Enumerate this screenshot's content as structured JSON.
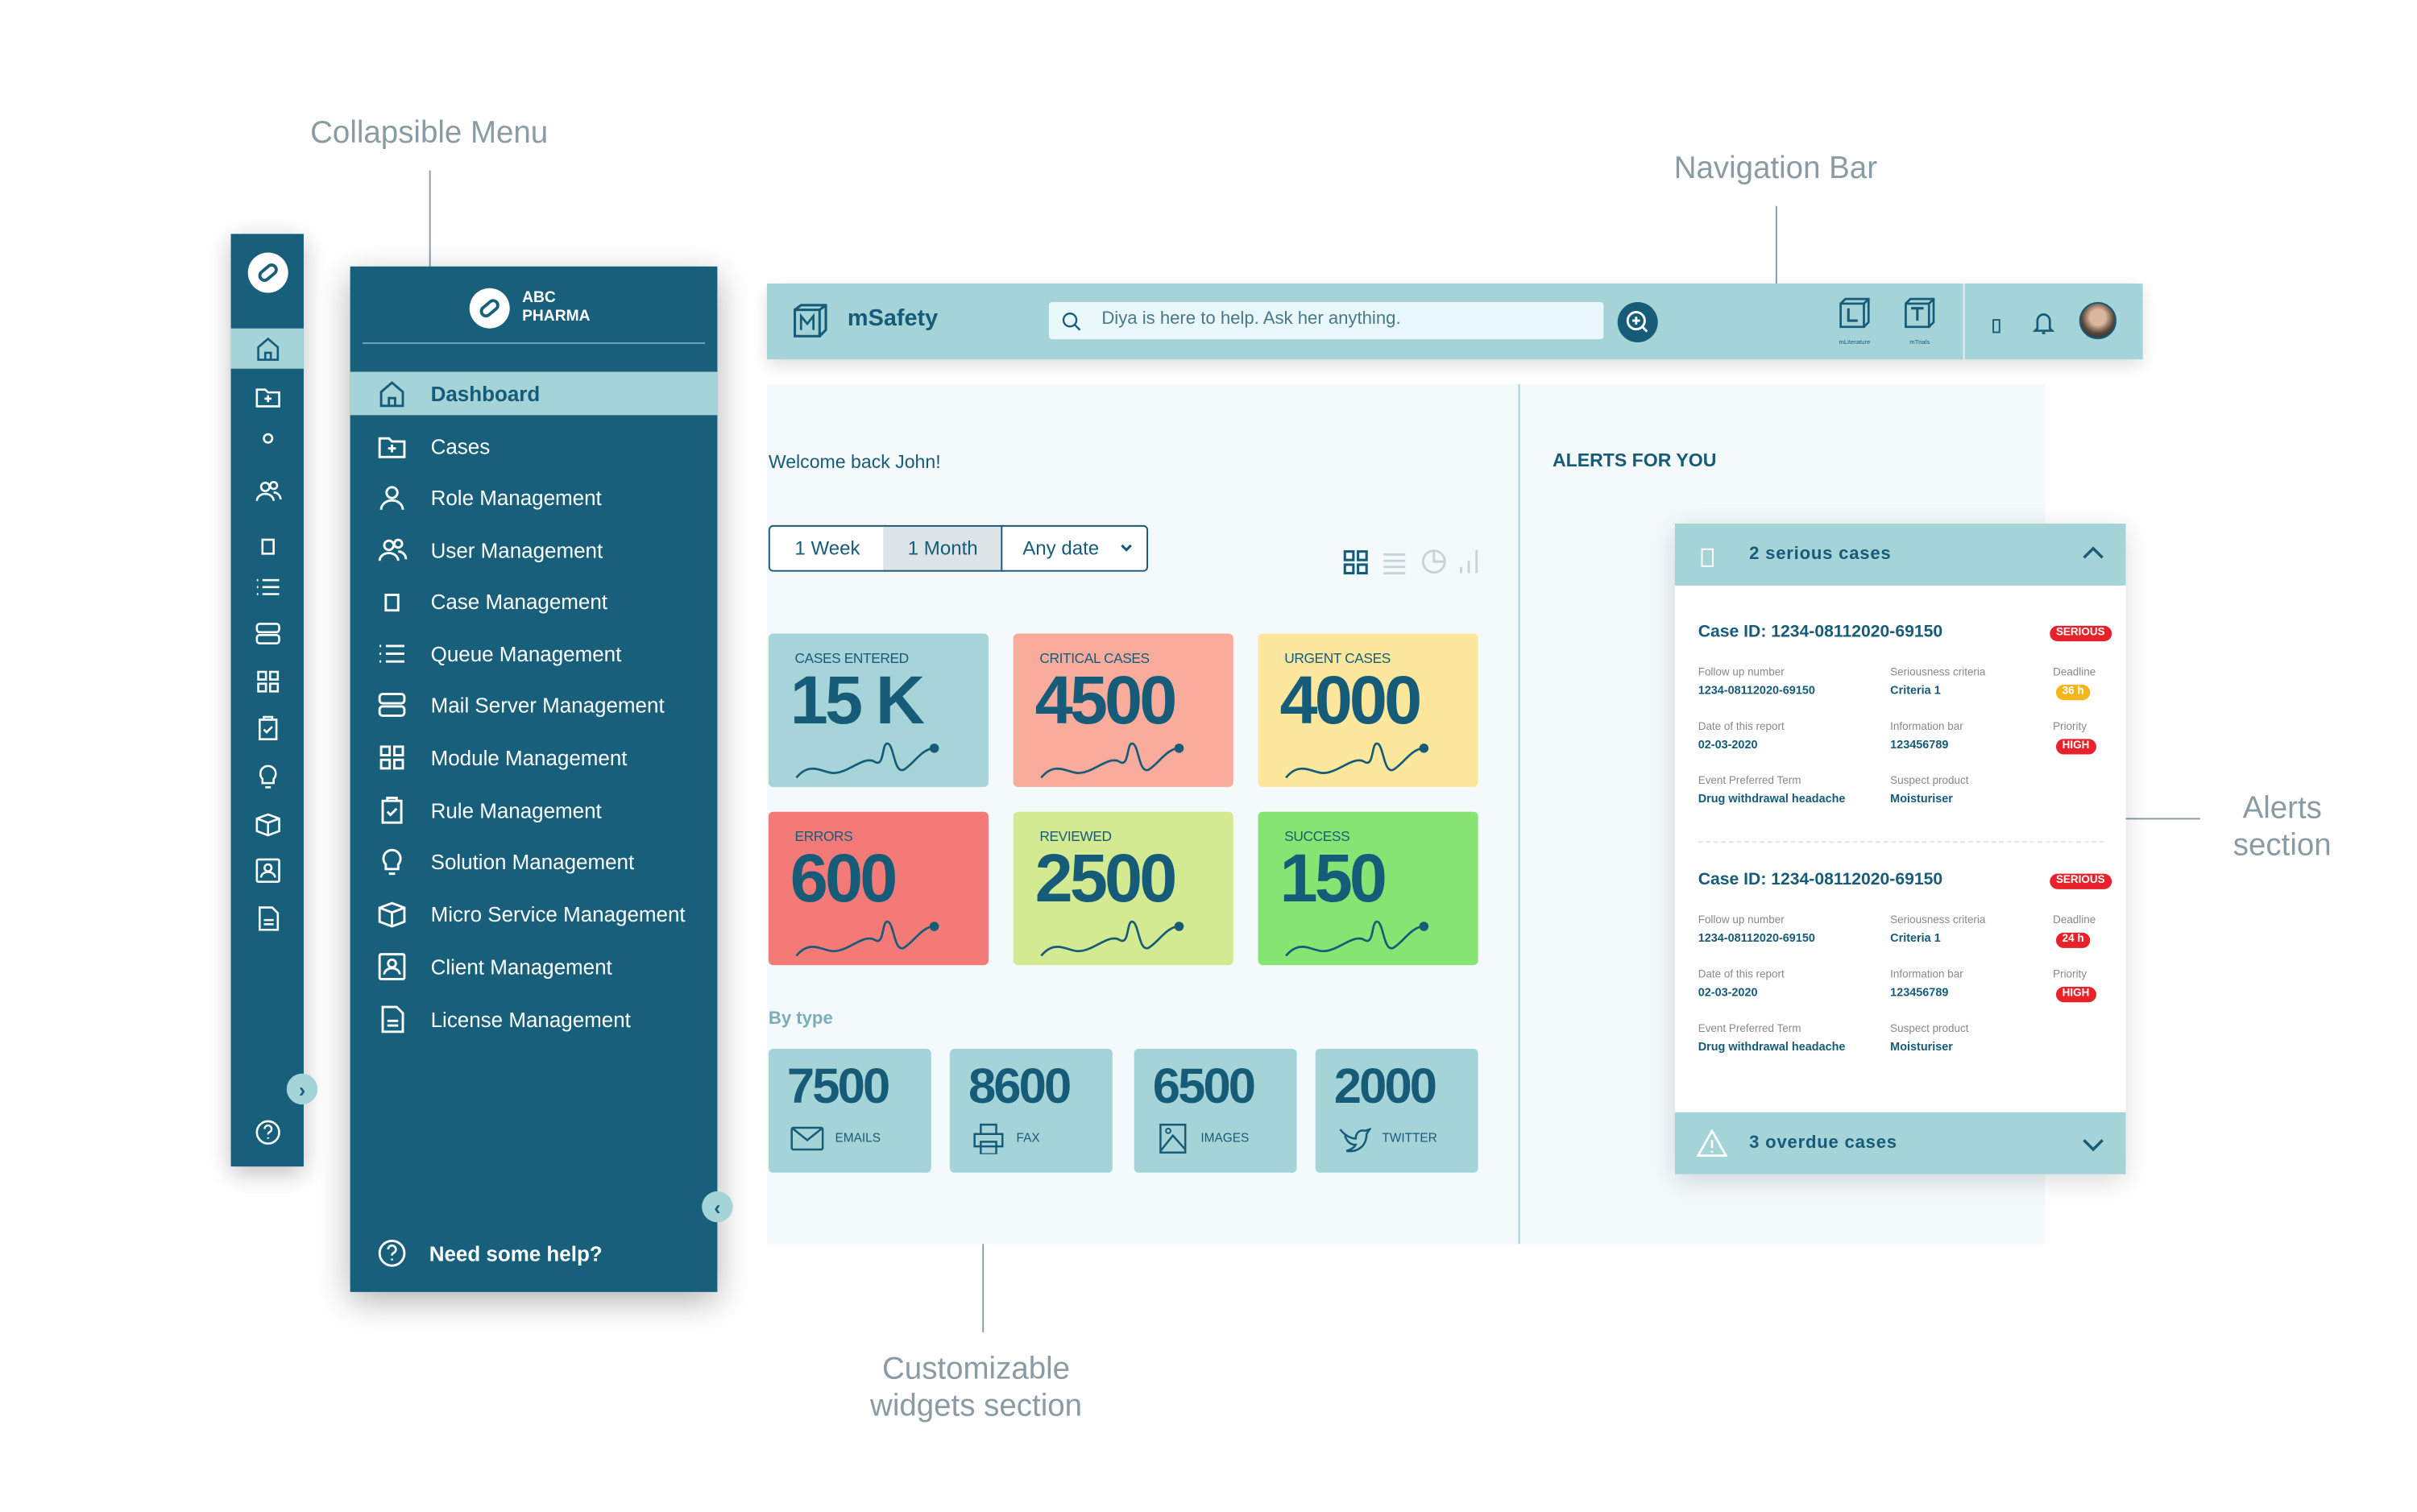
{
  "annotations": {
    "collapsible_menu": "Collapsible Menu",
    "navigation_bar": "Navigation Bar",
    "widgets_line1": "Customizable",
    "widgets_line2": "widgets section",
    "alerts_line1": "Alerts",
    "alerts_line2": "section"
  },
  "sidebar": {
    "brand_line1": "ABC",
    "brand_line2": "PHARMA",
    "items": [
      {
        "label": "Dashboard",
        "icon": "home-icon",
        "active": true
      },
      {
        "label": "Cases",
        "icon": "folder-plus-icon"
      },
      {
        "label": "Role Management",
        "icon": "user-icon"
      },
      {
        "label": "User Management",
        "icon": "users-icon"
      },
      {
        "label": "Case Management",
        "icon": "square-icon"
      },
      {
        "label": "Queue Management",
        "icon": "list-icon"
      },
      {
        "label": "Mail Server Management",
        "icon": "server-icon"
      },
      {
        "label": "Module Management",
        "icon": "grid-icon"
      },
      {
        "label": "Rule Management",
        "icon": "clipboard-check-icon"
      },
      {
        "label": "Solution Management",
        "icon": "lightbulb-icon"
      },
      {
        "label": "Micro Service Management",
        "icon": "cube-icon"
      },
      {
        "label": "Client Management",
        "icon": "id-card-icon"
      },
      {
        "label": "License Management",
        "icon": "document-icon"
      }
    ],
    "help_label": "Need some help?"
  },
  "navbar": {
    "app_name": "mSafety",
    "search_placeholder": "Diya is here to help. Ask her anything.",
    "apps": [
      {
        "letter": "L",
        "label": "mLiterature"
      },
      {
        "letter": "T",
        "label": "mTrials"
      }
    ]
  },
  "main": {
    "welcome": "Welcome back John!",
    "range_options": [
      "1 Week",
      "1 Month"
    ],
    "range_selected": "1 Month",
    "date_select": "Any date",
    "views": [
      "grid-view-icon",
      "list-view-icon",
      "pie-view-icon",
      "bar-view-icon"
    ],
    "cards": [
      {
        "title": "CASES ENTERED",
        "value": "15 K",
        "color": "#a6d4d8"
      },
      {
        "title": "CRITICAL CASES",
        "value": "4500",
        "color": "#f9ab9c"
      },
      {
        "title": "URGENT CASES",
        "value": "4000",
        "color": "#fde79d"
      },
      {
        "title": "ERRORS",
        "value": "600",
        "color": "#f47a78"
      },
      {
        "title": "REVIEWED",
        "value": "2500",
        "color": "#d3ea93"
      },
      {
        "title": "SUCCESS",
        "value": "150",
        "color": "#86e472"
      }
    ],
    "by_type_label": "By type",
    "types": [
      {
        "value": "7500",
        "label": "EMAILS",
        "icon": "mail-icon"
      },
      {
        "value": "8600",
        "label": "FAX",
        "icon": "printer-icon"
      },
      {
        "value": "6500",
        "label": "IMAGES",
        "icon": "image-icon"
      },
      {
        "value": "2000",
        "label": "TWITTER",
        "icon": "twitter-icon"
      }
    ]
  },
  "alerts": {
    "title": "ALERTS FOR YOU",
    "serious_header": "2 serious cases",
    "overdue_header": "3 overdue cases",
    "field_labels": {
      "followup": "Follow up number",
      "criteria": "Seriousness criteria",
      "deadline": "Deadline",
      "date": "Date of this report",
      "info": "Information bar",
      "priority": "Priority",
      "event": "Event Preferred Term",
      "product": "Suspect product"
    },
    "cases": [
      {
        "case_id": "Case ID: 1234-08112020-69150",
        "badge": "SERIOUS",
        "followup": "1234-08112020-69150",
        "criteria": "Criteria 1",
        "deadline": "36 h",
        "deadline_color": "#f7b51d",
        "date": "02-03-2020",
        "info": "123456789",
        "priority": "HIGH",
        "event": "Drug withdrawal headache",
        "product": "Moisturiser"
      },
      {
        "case_id": "Case ID: 1234-08112020-69150",
        "badge": "SERIOUS",
        "followup": "1234-08112020-69150",
        "criteria": "Criteria 1",
        "deadline": "24 h",
        "deadline_color": "#e8222a",
        "date": "02-03-2020",
        "info": "123456789",
        "priority": "HIGH",
        "event": "Drug withdrawal headache",
        "product": "Moisturiser"
      }
    ]
  },
  "colors": {
    "primary": "#185f7c",
    "accent": "#a5d4d8",
    "danger": "#e8222a"
  }
}
